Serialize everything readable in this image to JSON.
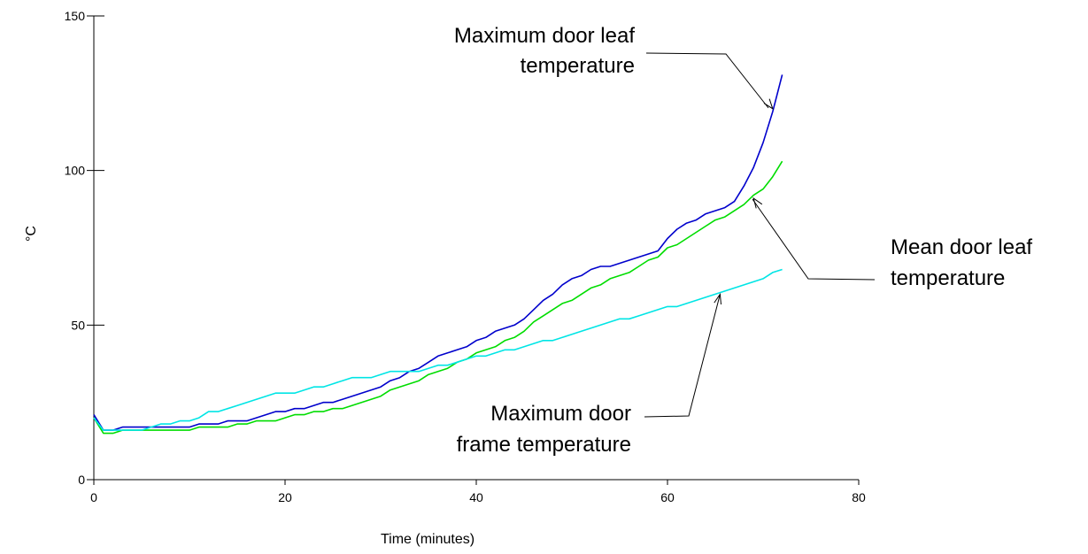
{
  "chart_data": {
    "type": "line",
    "title": "",
    "xlabel": "Time (minutes)",
    "ylabel": "°C",
    "xlim": [
      0,
      80
    ],
    "ylim": [
      0,
      150
    ],
    "xticks": [
      0,
      20,
      40,
      60,
      80
    ],
    "yticks": [
      0,
      50,
      100,
      150
    ],
    "grid": false,
    "series": [
      {
        "color": "#0000cc",
        "x": [
          0,
          1,
          2,
          3,
          4,
          5,
          6,
          7,
          8,
          9,
          10,
          11,
          12,
          13,
          14,
          15,
          16,
          17,
          18,
          19,
          20,
          21,
          22,
          23,
          24,
          25,
          26,
          27,
          28,
          29,
          30,
          31,
          32,
          33,
          34,
          35,
          36,
          37,
          38,
          39,
          40,
          41,
          42,
          43,
          44,
          45,
          46,
          47,
          48,
          49,
          50,
          51,
          52,
          53,
          54,
          55,
          56,
          57,
          58,
          59,
          60,
          61,
          62,
          63,
          64,
          65,
          66,
          67,
          68,
          69,
          70,
          71,
          72
        ],
        "y": [
          21,
          16,
          16,
          17,
          17,
          17,
          17,
          17,
          17,
          17,
          17,
          18,
          18,
          18,
          19,
          19,
          19,
          20,
          21,
          22,
          22,
          23,
          23,
          24,
          25,
          25,
          26,
          27,
          28,
          29,
          30,
          32,
          33,
          35,
          36,
          38,
          40,
          41,
          42,
          43,
          45,
          46,
          48,
          49,
          50,
          52,
          55,
          58,
          60,
          63,
          65,
          66,
          68,
          69,
          69,
          70,
          71,
          72,
          73,
          74,
          78,
          81,
          83,
          84,
          86,
          87,
          88,
          90,
          95,
          101,
          109,
          119,
          131
        ]
      },
      {
        "color": "#00dd00",
        "x": [
          0,
          1,
          2,
          3,
          4,
          5,
          6,
          7,
          8,
          9,
          10,
          11,
          12,
          13,
          14,
          15,
          16,
          17,
          18,
          19,
          20,
          21,
          22,
          23,
          24,
          25,
          26,
          27,
          28,
          29,
          30,
          31,
          32,
          33,
          34,
          35,
          36,
          37,
          38,
          39,
          40,
          41,
          42,
          43,
          44,
          45,
          46,
          47,
          48,
          49,
          50,
          51,
          52,
          53,
          54,
          55,
          56,
          57,
          58,
          59,
          60,
          61,
          62,
          63,
          64,
          65,
          66,
          67,
          68,
          69,
          70,
          71,
          72
        ],
        "y": [
          20,
          15,
          15,
          16,
          16,
          16,
          16,
          16,
          16,
          16,
          16,
          17,
          17,
          17,
          17,
          18,
          18,
          19,
          19,
          19,
          20,
          21,
          21,
          22,
          22,
          23,
          23,
          24,
          25,
          26,
          27,
          29,
          30,
          31,
          32,
          34,
          35,
          36,
          38,
          39,
          41,
          42,
          43,
          45,
          46,
          48,
          51,
          53,
          55,
          57,
          58,
          60,
          62,
          63,
          65,
          66,
          67,
          69,
          71,
          72,
          75,
          76,
          78,
          80,
          82,
          84,
          85,
          87,
          89,
          92,
          94,
          98,
          103
        ]
      },
      {
        "color": "#00e5e5",
        "x": [
          0,
          1,
          2,
          3,
          4,
          5,
          6,
          7,
          8,
          9,
          10,
          11,
          12,
          13,
          14,
          15,
          16,
          17,
          18,
          19,
          20,
          21,
          22,
          23,
          24,
          25,
          26,
          27,
          28,
          29,
          30,
          31,
          32,
          33,
          34,
          35,
          36,
          37,
          38,
          39,
          40,
          41,
          42,
          43,
          44,
          45,
          46,
          47,
          48,
          49,
          50,
          51,
          52,
          53,
          54,
          55,
          56,
          57,
          58,
          59,
          60,
          61,
          62,
          63,
          64,
          65,
          66,
          67,
          68,
          69,
          70,
          71,
          72
        ],
        "y": [
          20,
          16,
          16,
          16,
          16,
          16,
          17,
          18,
          18,
          19,
          19,
          20,
          22,
          22,
          23,
          24,
          25,
          26,
          27,
          28,
          28,
          28,
          29,
          30,
          30,
          31,
          32,
          33,
          33,
          33,
          34,
          35,
          35,
          35,
          35,
          36,
          37,
          37,
          38,
          39,
          40,
          40,
          41,
          42,
          42,
          43,
          44,
          45,
          45,
          46,
          47,
          48,
          49,
          50,
          51,
          52,
          52,
          53,
          54,
          55,
          56,
          56,
          57,
          58,
          59,
          60,
          61,
          62,
          63,
          64,
          65,
          67,
          68
        ]
      }
    ],
    "annotations": [
      {
        "lines": [
          "Maximum door leaf",
          "temperature"
        ],
        "target": [
          71,
          120
        ]
      },
      {
        "lines": [
          "Mean door leaf",
          "temperature"
        ],
        "target": [
          69,
          91
        ]
      },
      {
        "lines": [
          "Maximum door",
          "frame temperature"
        ],
        "target": [
          65.5,
          60
        ]
      }
    ]
  }
}
